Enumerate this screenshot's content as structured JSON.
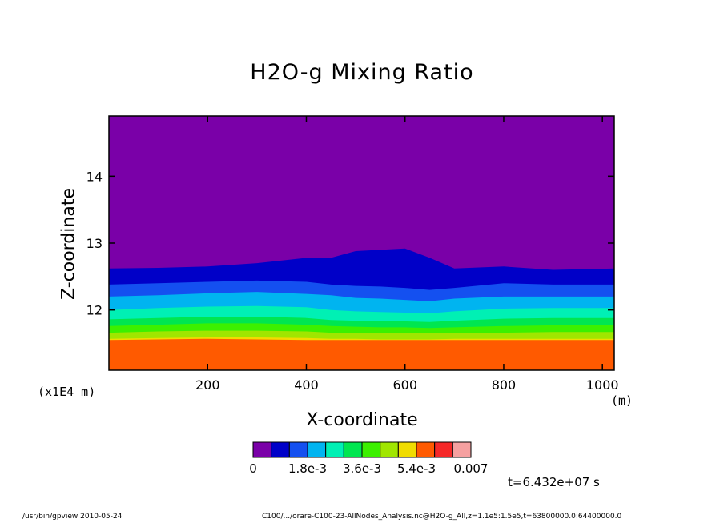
{
  "chart_data": {
    "type": "heatmap",
    "title": "H2O-g Mixing Ratio",
    "xlabel": "X-coordinate",
    "ylabel": "Z-coordinate",
    "x_unit_label": "(m)",
    "y_unit_label": "(x1E4 m)",
    "xlim": [
      0,
      1024
    ],
    "ylim": [
      11.1,
      14.9
    ],
    "x_ticks": [
      200,
      400,
      600,
      800,
      1000
    ],
    "x_tick_labels": [
      "200",
      "400",
      "600",
      "800",
      "1000"
    ],
    "y_ticks": [
      12,
      13,
      14
    ],
    "y_tick_labels": [
      "12",
      "13",
      "14"
    ],
    "colorbar": {
      "min": 0,
      "max": 0.007,
      "colors": [
        "#7a00a8",
        "#0000c8",
        "#1450f0",
        "#00b4f0",
        "#00f0b4",
        "#00e650",
        "#3cf000",
        "#a0e600",
        "#f0dc00",
        "#ff5a00",
        "#f52828",
        "#f5a0a0"
      ],
      "labels": [
        "0",
        "1.8e-3",
        "3.6e-3",
        "5.4e-3",
        "0.007"
      ]
    },
    "contour_x": [
      0,
      100,
      200,
      300,
      400,
      450,
      500,
      550,
      600,
      650,
      700,
      800,
      900,
      1024
    ],
    "contour_levels": [
      {
        "color": "#7a00a8",
        "z": [
          14.9,
          14.9,
          14.9,
          14.9,
          14.9,
          14.9,
          14.9,
          14.9,
          14.9,
          14.9,
          14.9,
          14.9,
          14.9,
          14.9
        ]
      },
      {
        "color": "#0000c8",
        "z": [
          12.62,
          12.63,
          12.65,
          12.7,
          12.78,
          12.78,
          12.88,
          12.9,
          12.92,
          12.78,
          12.62,
          12.65,
          12.6,
          12.62
        ]
      },
      {
        "color": "#1450f0",
        "z": [
          12.38,
          12.4,
          12.42,
          12.44,
          12.42,
          12.38,
          12.36,
          12.35,
          12.33,
          12.3,
          12.33,
          12.4,
          12.38,
          12.38
        ]
      },
      {
        "color": "#00b4f0",
        "z": [
          12.2,
          12.22,
          12.25,
          12.27,
          12.24,
          12.22,
          12.18,
          12.17,
          12.15,
          12.13,
          12.17,
          12.2,
          12.2,
          12.2
        ]
      },
      {
        "color": "#00f0b4",
        "z": [
          12.0,
          12.03,
          12.05,
          12.06,
          12.04,
          12.0,
          11.98,
          11.97,
          11.96,
          11.95,
          11.98,
          12.02,
          12.03,
          12.03
        ]
      },
      {
        "color": "#00e650",
        "z": [
          11.86,
          11.88,
          11.9,
          11.9,
          11.88,
          11.85,
          11.84,
          11.83,
          11.83,
          11.82,
          11.84,
          11.87,
          11.88,
          11.88
        ]
      },
      {
        "color": "#3cf000",
        "z": [
          11.76,
          11.78,
          11.8,
          11.8,
          11.78,
          11.76,
          11.75,
          11.74,
          11.74,
          11.73,
          11.74,
          11.76,
          11.77,
          11.77
        ]
      },
      {
        "color": "#a0e600",
        "z": [
          11.66,
          11.68,
          11.69,
          11.69,
          11.68,
          11.66,
          11.66,
          11.65,
          11.65,
          11.65,
          11.66,
          11.66,
          11.67,
          11.67
        ]
      },
      {
        "color": "#f0dc00",
        "z": [
          11.57,
          11.58,
          11.59,
          11.59,
          11.58,
          11.57,
          11.57,
          11.56,
          11.56,
          11.56,
          11.57,
          11.57,
          11.57,
          11.57
        ]
      },
      {
        "color": "#ff5a00",
        "z": [
          11.55,
          11.56,
          11.57,
          11.56,
          11.55,
          11.55,
          11.55,
          11.55,
          11.55,
          11.55,
          11.55,
          11.55,
          11.55,
          11.55
        ]
      }
    ],
    "time_label": "t=6.432e+07 s",
    "footer_left": "/usr/bin/gpview  2010-05-24",
    "footer_right": "C100/.../orare-C100-23-AllNodes_Analysis.nc@H2O-g_All,z=1.1e5:1.5e5,t=63800000.0:64400000.0"
  }
}
